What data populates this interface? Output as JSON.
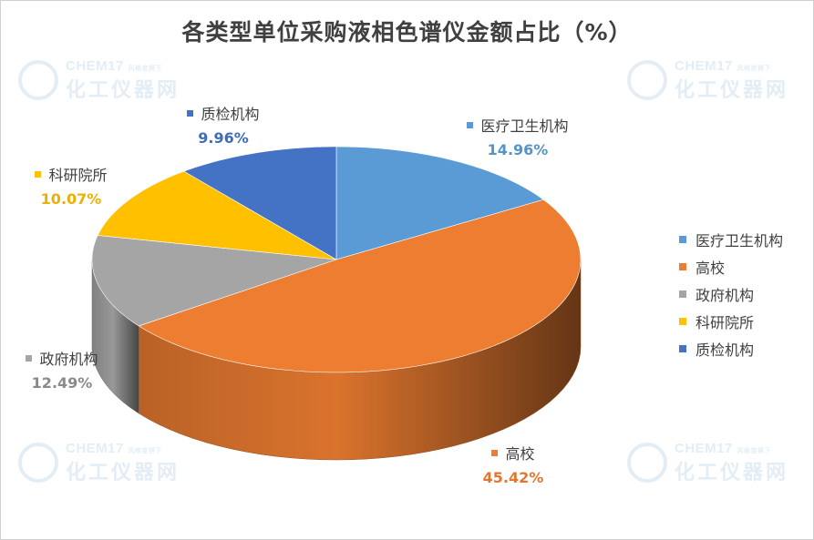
{
  "chart_data": {
    "type": "pie",
    "title": "各类型单位采购液相色谱仪金额占比（%）",
    "categories": [
      "医疗卫生机构",
      "高校",
      "政府机构",
      "科研院所",
      "质检机构"
    ],
    "values": [
      14.96,
      45.42,
      12.49,
      10.07,
      9.96
    ],
    "value_labels": [
      "14.96%",
      "45.42%",
      "12.49%",
      "10.07%",
      "9.96%"
    ],
    "colors": [
      "#5B9BD5",
      "#ED7D31",
      "#A5A5A5",
      "#FFC000",
      "#4472C4"
    ],
    "legend_position": "right",
    "style": "3d-pie"
  },
  "watermark": {
    "top": "CHEM17",
    "small": "风格变换下",
    "bottom": "化工仪器网"
  }
}
